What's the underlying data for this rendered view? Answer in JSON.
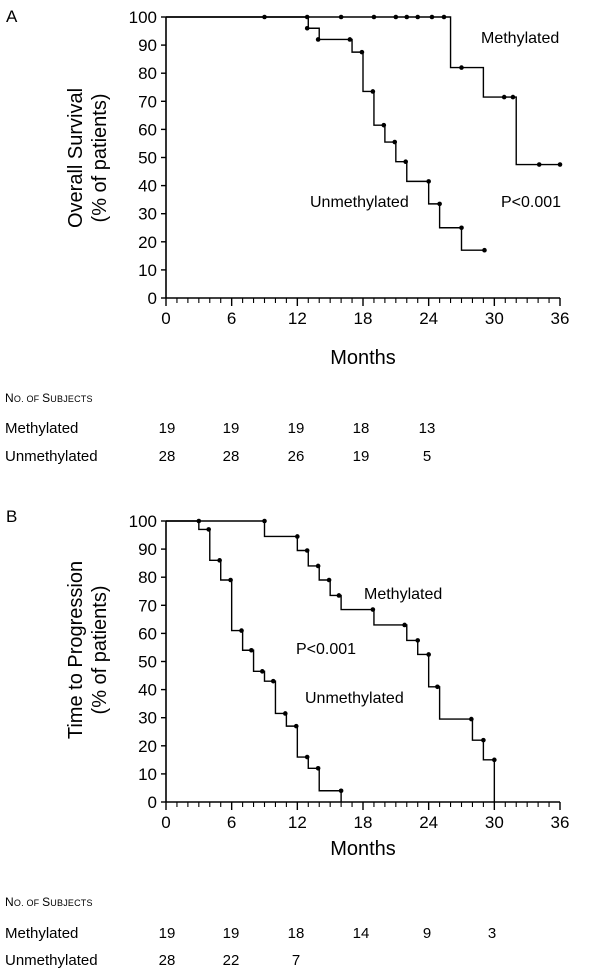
{
  "panels": [
    {
      "letter": "A",
      "ylabel_line1": "Overall Survival",
      "ylabel_line2": "(% of patients)",
      "xlabel": "Months",
      "pvalue": "P<0.001",
      "series_labels": [
        "Methylated",
        "Unmethylated"
      ],
      "subjects_header": "No. of Subjects",
      "subjects": [
        {
          "label": "Methylated",
          "values": [
            "19",
            "19",
            "19",
            "18",
            "13"
          ]
        },
        {
          "label": "Unmethylated",
          "values": [
            "28",
            "28",
            "26",
            "19",
            "5"
          ]
        }
      ]
    },
    {
      "letter": "B",
      "ylabel_line1": "Time to Progression",
      "ylabel_line2": "(% of patients)",
      "xlabel": "Months",
      "pvalue": "P<0.001",
      "series_labels": [
        "Methylated",
        "Unmethylated"
      ],
      "subjects_header": "No. of Subjects",
      "subjects": [
        {
          "label": "Methylated",
          "values": [
            "19",
            "19",
            "18",
            "14",
            "9",
            "3"
          ]
        },
        {
          "label": "Unmethylated",
          "values": [
            "28",
            "22",
            "7"
          ]
        }
      ]
    }
  ],
  "chart_data": [
    {
      "type": "line",
      "style": "kaplan-meier step curves with censor dots",
      "title": "A",
      "xlabel": "Months",
      "ylabel": "Overall Survival (% of patients)",
      "xlim": [
        0,
        36
      ],
      "ylim": [
        0,
        100
      ],
      "xticks": [
        0,
        6,
        12,
        18,
        24,
        30,
        36
      ],
      "yticks": [
        0,
        10,
        20,
        30,
        40,
        50,
        60,
        70,
        80,
        90,
        100
      ],
      "grid": false,
      "series": [
        {
          "name": "Methylated",
          "steps": [
            [
              0,
              100
            ],
            [
              26,
              82
            ],
            [
              29,
              71.5
            ],
            [
              32,
              47.5
            ],
            [
              36,
              47.5
            ]
          ],
          "censor": [
            [
              9,
              100
            ],
            [
              12.9,
              100
            ],
            [
              16,
              100
            ],
            [
              19,
              100
            ],
            [
              21,
              100
            ],
            [
              22,
              100
            ],
            [
              23,
              100
            ],
            [
              24.3,
              100
            ],
            [
              25.4,
              100
            ],
            [
              27,
              82
            ],
            [
              30.9,
              71.5
            ],
            [
              31.7,
              71.5
            ],
            [
              34.1,
              47.5
            ],
            [
              36,
              47.5
            ]
          ]
        },
        {
          "name": "Unmethylated",
          "steps": [
            [
              0,
              100
            ],
            [
              13,
              96
            ],
            [
              14,
              92
            ],
            [
              17,
              87.5
            ],
            [
              18,
              73.5
            ],
            [
              19,
              61.5
            ],
            [
              20,
              55.5
            ],
            [
              21,
              48.5
            ],
            [
              22,
              41.5
            ],
            [
              24,
              33.5
            ],
            [
              25,
              25
            ],
            [
              27,
              17
            ],
            [
              29,
              17
            ]
          ],
          "censor": [
            [
              12.9,
              96
            ],
            [
              13.9,
              92
            ],
            [
              16.8,
              92
            ],
            [
              17.9,
              87.5
            ],
            [
              18.9,
              73.5
            ],
            [
              19.9,
              61.5
            ],
            [
              20.9,
              55.5
            ],
            [
              21.9,
              48.5
            ],
            [
              24,
              41.5
            ],
            [
              25,
              33.5
            ],
            [
              27,
              25
            ],
            [
              29.1,
              17
            ]
          ]
        }
      ],
      "annotations": [
        "Methylated",
        "Unmethylated",
        "P<0.001"
      ]
    },
    {
      "type": "line",
      "style": "kaplan-meier step curves with censor dots",
      "title": "B",
      "xlabel": "Months",
      "ylabel": "Time to Progression (% of patients)",
      "xlim": [
        0,
        36
      ],
      "ylim": [
        0,
        100
      ],
      "xticks": [
        0,
        6,
        12,
        18,
        24,
        30,
        36
      ],
      "yticks": [
        0,
        10,
        20,
        30,
        40,
        50,
        60,
        70,
        80,
        90,
        100
      ],
      "grid": false,
      "series": [
        {
          "name": "Methylated",
          "steps": [
            [
              0,
              100
            ],
            [
              9,
              94.5
            ],
            [
              12,
              89.5
            ],
            [
              13,
              84
            ],
            [
              14,
              79
            ],
            [
              15,
              73.5
            ],
            [
              16,
              68.5
            ],
            [
              19,
              63
            ],
            [
              22,
              57.5
            ],
            [
              23,
              52.5
            ],
            [
              24,
              41
            ],
            [
              25,
              29.5
            ],
            [
              28,
              22
            ],
            [
              29,
              15
            ],
            [
              30,
              0
            ]
          ],
          "censor": [
            [
              9,
              100
            ],
            [
              12,
              94.5
            ],
            [
              12.9,
              89.5
            ],
            [
              13.9,
              84
            ],
            [
              14.9,
              79
            ],
            [
              15.8,
              73.5
            ],
            [
              18.9,
              68.5
            ],
            [
              21.8,
              63
            ],
            [
              23,
              57.5
            ],
            [
              24,
              52.5
            ],
            [
              24.8,
              41
            ],
            [
              27.9,
              29.5
            ],
            [
              29,
              22
            ],
            [
              30,
              15
            ]
          ]
        },
        {
          "name": "Unmethylated",
          "steps": [
            [
              0,
              100
            ],
            [
              3,
              97
            ],
            [
              4,
              86
            ],
            [
              5,
              79
            ],
            [
              6,
              61
            ],
            [
              7,
              54
            ],
            [
              8,
              46.5
            ],
            [
              9,
              43
            ],
            [
              10,
              31.5
            ],
            [
              11,
              27
            ],
            [
              12,
              16
            ],
            [
              13,
              12
            ],
            [
              14,
              4
            ],
            [
              16,
              0
            ]
          ],
          "censor": [
            [
              3,
              100
            ],
            [
              3.9,
              97
            ],
            [
              4.9,
              86
            ],
            [
              5.9,
              79
            ],
            [
              6.9,
              61
            ],
            [
              7.8,
              54
            ],
            [
              8.8,
              46.5
            ],
            [
              9.8,
              43
            ],
            [
              10.9,
              31.5
            ],
            [
              11.9,
              27
            ],
            [
              12.9,
              16
            ],
            [
              13.9,
              12
            ],
            [
              16,
              4
            ]
          ]
        }
      ],
      "annotations": [
        "Methylated",
        "Unmethylated",
        "P<0.001"
      ]
    }
  ]
}
